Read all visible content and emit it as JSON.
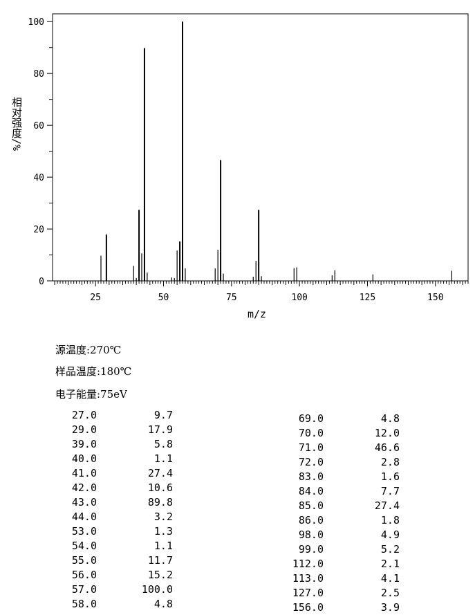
{
  "chart_data": {
    "type": "bar",
    "xlabel": "m/z",
    "ylabel": "相对强度/%",
    "xlim": [
      9.2,
      162
    ],
    "ylim": [
      0,
      103
    ],
    "xticks": [
      25,
      50,
      75,
      100,
      125,
      150
    ],
    "yticks": [
      0,
      20,
      40,
      60,
      80,
      100
    ],
    "peaks": [
      {
        "mz": 27.0,
        "intensity": 9.7
      },
      {
        "mz": 29.0,
        "intensity": 17.9
      },
      {
        "mz": 39.0,
        "intensity": 5.8
      },
      {
        "mz": 40.0,
        "intensity": 1.1
      },
      {
        "mz": 41.0,
        "intensity": 27.4
      },
      {
        "mz": 42.0,
        "intensity": 10.6
      },
      {
        "mz": 43.0,
        "intensity": 89.8
      },
      {
        "mz": 44.0,
        "intensity": 3.2
      },
      {
        "mz": 53.0,
        "intensity": 1.3
      },
      {
        "mz": 54.0,
        "intensity": 1.1
      },
      {
        "mz": 55.0,
        "intensity": 11.7
      },
      {
        "mz": 56.0,
        "intensity": 15.2
      },
      {
        "mz": 57.0,
        "intensity": 100.0
      },
      {
        "mz": 58.0,
        "intensity": 4.8
      },
      {
        "mz": 69.0,
        "intensity": 4.8
      },
      {
        "mz": 70.0,
        "intensity": 12.0
      },
      {
        "mz": 71.0,
        "intensity": 46.6
      },
      {
        "mz": 72.0,
        "intensity": 2.8
      },
      {
        "mz": 83.0,
        "intensity": 1.6
      },
      {
        "mz": 84.0,
        "intensity": 7.7
      },
      {
        "mz": 85.0,
        "intensity": 27.4
      },
      {
        "mz": 86.0,
        "intensity": 1.8
      },
      {
        "mz": 98.0,
        "intensity": 4.9
      },
      {
        "mz": 99.0,
        "intensity": 5.2
      },
      {
        "mz": 112.0,
        "intensity": 2.1
      },
      {
        "mz": 113.0,
        "intensity": 4.1
      },
      {
        "mz": 127.0,
        "intensity": 2.5
      },
      {
        "mz": 156.0,
        "intensity": 3.9
      }
    ]
  },
  "conditions": {
    "source_temp": "源温度:270℃",
    "sample_temp": "样品温度:180℃",
    "electron_energy": "电子能量:75eV"
  },
  "table_left": [
    {
      "mz": "27.0",
      "abundance": "9.7"
    },
    {
      "mz": "29.0",
      "abundance": "17.9"
    },
    {
      "mz": "39.0",
      "abundance": "5.8"
    },
    {
      "mz": "40.0",
      "abundance": "1.1"
    },
    {
      "mz": "41.0",
      "abundance": "27.4"
    },
    {
      "mz": "42.0",
      "abundance": "10.6"
    },
    {
      "mz": "43.0",
      "abundance": "89.8"
    },
    {
      "mz": "44.0",
      "abundance": "3.2"
    },
    {
      "mz": "53.0",
      "abundance": "1.3"
    },
    {
      "mz": "54.0",
      "abundance": "1.1"
    },
    {
      "mz": "55.0",
      "abundance": "11.7"
    },
    {
      "mz": "56.0",
      "abundance": "15.2"
    },
    {
      "mz": "57.0",
      "abundance": "100.0"
    },
    {
      "mz": "58.0",
      "abundance": "4.8"
    }
  ],
  "table_right": [
    {
      "mz": "69.0",
      "abundance": "4.8"
    },
    {
      "mz": "70.0",
      "abundance": "12.0"
    },
    {
      "mz": "71.0",
      "abundance": "46.6"
    },
    {
      "mz": "72.0",
      "abundance": "2.8"
    },
    {
      "mz": "83.0",
      "abundance": "1.6"
    },
    {
      "mz": "84.0",
      "abundance": "7.7"
    },
    {
      "mz": "85.0",
      "abundance": "27.4"
    },
    {
      "mz": "86.0",
      "abundance": "1.8"
    },
    {
      "mz": "98.0",
      "abundance": "4.9"
    },
    {
      "mz": "99.0",
      "abundance": "5.2"
    },
    {
      "mz": "112.0",
      "abundance": "2.1"
    },
    {
      "mz": "113.0",
      "abundance": "4.1"
    },
    {
      "mz": "127.0",
      "abundance": "2.5"
    },
    {
      "mz": "156.0",
      "abundance": "3.9"
    }
  ]
}
